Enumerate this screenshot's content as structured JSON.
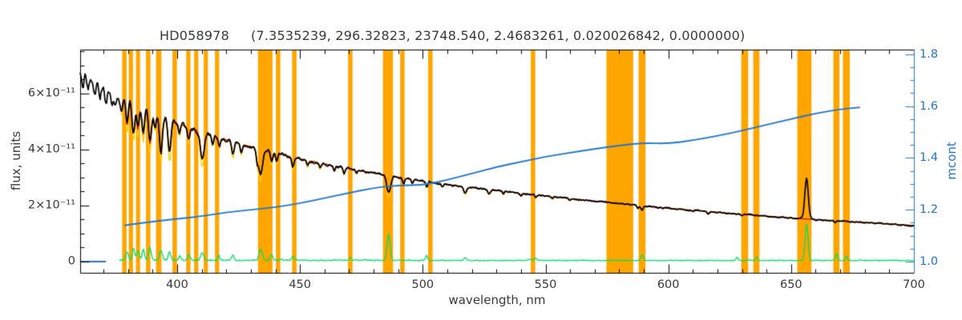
{
  "title": {
    "star_id": "HD058978",
    "params": "(7.3535239, 296.32823, 23748.540, 2.4683261, 0.020026842, 0.0000000)"
  },
  "axes": {
    "x_label": "wavelength, nm",
    "y_left_label": "flux, units",
    "y_right_label": "mcont"
  },
  "colors": {
    "mask_band": "#FFA500",
    "data_spectrum": "#000000",
    "fit": "#BB1100",
    "fit_alt": "#FFCC00",
    "residual": "#00DF60",
    "mcont": "#2277CC",
    "axis": "#000000",
    "text": "#3A3A3A",
    "background": "#FFFFFF"
  },
  "chart_data": {
    "type": "line",
    "title": "HD058978  (7.3535239, 296.32823, 23748.540, 2.4683261, 0.020026842, 0.0000000)",
    "xlabel": "wavelength, nm",
    "ylabel_left": "flux, units",
    "ylabel_right": "mcont",
    "x_range": [
      360.5,
      700
    ],
    "flux_unit_scale": "1e-11",
    "flux_range_1e11": [
      -0.4,
      7.57
    ],
    "mcont_range": [
      0.957,
      1.818
    ],
    "grid": false,
    "x_ticks": [
      400,
      450,
      500,
      550,
      600,
      650,
      700
    ],
    "x_minor_step": 10,
    "flux_ticks": [
      {
        "v": 0,
        "label": "0"
      },
      {
        "v": 2,
        "label": "2×10⁻¹¹"
      },
      {
        "v": 4,
        "label": "4×10⁻¹¹"
      },
      {
        "v": 6,
        "label": "6×10⁻¹¹"
      }
    ],
    "flux_minor_step": 0.5,
    "mcont_ticks": [
      {
        "v": 1.0,
        "label": "1.0"
      },
      {
        "v": 1.2,
        "label": "1.2"
      },
      {
        "v": 1.4,
        "label": "1.4"
      },
      {
        "v": 1.6,
        "label": "1.6"
      },
      {
        "v": 1.8,
        "label": "1.8"
      }
    ],
    "mcont_minor_step": 0.05,
    "masks_nm": [
      [
        377.6,
        379.4
      ],
      [
        380.3,
        382.0
      ],
      [
        383.2,
        384.9
      ],
      [
        387.3,
        389.1
      ],
      [
        391.4,
        393.6
      ],
      [
        398.1,
        399.9
      ],
      [
        403.7,
        405.4
      ],
      [
        406.9,
        408.6
      ],
      [
        410.8,
        412.5
      ],
      [
        415.4,
        417.1
      ],
      [
        432.9,
        438.8
      ],
      [
        440.2,
        442.0
      ],
      [
        446.8,
        448.6
      ],
      [
        469.6,
        471.4
      ],
      [
        483.8,
        487.9
      ],
      [
        490.8,
        492.6
      ],
      [
        502.2,
        504.0
      ],
      [
        544.0,
        545.8
      ],
      [
        574.8,
        585.7
      ],
      [
        587.9,
        590.7
      ],
      [
        629.7,
        632.5
      ],
      [
        634.6,
        637.1
      ],
      [
        652.5,
        658.3
      ],
      [
        667.2,
        669.7
      ],
      [
        671.1,
        673.9
      ]
    ],
    "series": {
      "flux_continuum_1e11": [
        [
          360,
          6.75
        ],
        [
          368,
          6.32
        ],
        [
          376,
          5.93
        ],
        [
          384,
          5.57
        ],
        [
          392,
          5.25
        ],
        [
          400,
          4.95
        ],
        [
          410,
          4.63
        ],
        [
          420,
          4.35
        ],
        [
          430,
          4.1
        ],
        [
          440,
          3.88
        ],
        [
          450,
          3.67
        ],
        [
          465,
          3.4
        ],
        [
          480,
          3.16
        ],
        [
          495,
          2.94
        ],
        [
          510,
          2.75
        ],
        [
          525,
          2.59
        ],
        [
          540,
          2.44
        ],
        [
          555,
          2.3
        ],
        [
          570,
          2.16
        ],
        [
          585,
          2.03
        ],
        [
          600,
          1.9
        ],
        [
          615,
          1.8
        ],
        [
          630,
          1.69
        ],
        [
          645,
          1.59
        ],
        [
          660,
          1.5
        ],
        [
          675,
          1.42
        ],
        [
          690,
          1.34
        ],
        [
          700,
          1.29
        ]
      ],
      "absorption_lines_c_d_w": [
        [
          361.6,
          0.35,
          0.4
        ],
        [
          363.6,
          0.4,
          0.45
        ],
        [
          366.4,
          0.45,
          0.45
        ],
        [
          368.6,
          0.4,
          0.4
        ],
        [
          371.0,
          0.45,
          0.45
        ],
        [
          373.6,
          0.55,
          0.5
        ],
        [
          375.0,
          0.4,
          0.4
        ],
        [
          377.2,
          0.5,
          0.45
        ],
        [
          379.6,
          0.9,
          0.5
        ],
        [
          382.2,
          1.05,
          0.55
        ],
        [
          384.0,
          0.85,
          0.5
        ],
        [
          386.2,
          0.95,
          0.5
        ],
        [
          388.9,
          1.15,
          0.6
        ],
        [
          391.0,
          0.5,
          0.4
        ],
        [
          393.4,
          1.25,
          0.6
        ],
        [
          396.9,
          1.15,
          0.6
        ],
        [
          400.9,
          0.35,
          0.4
        ],
        [
          404.6,
          0.45,
          0.45
        ],
        [
          410.2,
          0.95,
          0.8
        ],
        [
          414.4,
          0.3,
          0.4
        ],
        [
          417.2,
          0.3,
          0.4
        ],
        [
          422.7,
          0.45,
          0.5
        ],
        [
          426.1,
          0.3,
          0.4
        ],
        [
          432.6,
          0.35,
          0.4
        ],
        [
          434.0,
          0.9,
          0.8
        ],
        [
          438.4,
          0.35,
          0.45
        ],
        [
          440.5,
          0.3,
          0.4
        ],
        [
          447.1,
          0.35,
          0.5
        ],
        [
          453.1,
          0.2,
          0.4
        ],
        [
          458.2,
          0.18,
          0.4
        ],
        [
          464.0,
          0.15,
          0.4
        ],
        [
          468.0,
          0.2,
          0.4
        ],
        [
          473.0,
          0.12,
          0.4
        ],
        [
          486.1,
          0.6,
          0.8
        ],
        [
          492.2,
          0.18,
          0.4
        ],
        [
          495.7,
          0.12,
          0.35
        ],
        [
          501.6,
          0.18,
          0.4
        ],
        [
          508.0,
          0.1,
          0.4
        ],
        [
          517.3,
          0.22,
          0.6
        ],
        [
          527.0,
          0.15,
          0.5
        ],
        [
          532.8,
          0.1,
          0.4
        ],
        [
          540.0,
          0.07,
          0.4
        ],
        [
          546.0,
          0.1,
          0.4
        ],
        [
          552.8,
          0.08,
          0.4
        ],
        [
          560.0,
          0.06,
          0.4
        ],
        [
          587.6,
          0.1,
          0.4
        ],
        [
          589.3,
          0.15,
          0.5
        ],
        [
          610.0,
          0.05,
          0.4
        ],
        [
          616.2,
          0.07,
          0.4
        ],
        [
          630.0,
          0.06,
          0.4
        ],
        [
          667.8,
          0.07,
          0.4
        ]
      ],
      "emission_line_c_h_w": [
        656.3,
        1.45,
        0.7
      ],
      "fit_start_nm": 377.0,
      "fit_line_depth_scale_red": 1.0,
      "fit_line_depth_scale_yellow": 1.3,
      "mcont": [
        [
          378.5,
          1.14
        ],
        [
          390,
          1.155
        ],
        [
          400,
          1.165
        ],
        [
          410,
          1.175
        ],
        [
          420,
          1.19
        ],
        [
          430,
          1.2
        ],
        [
          440,
          1.21
        ],
        [
          450,
          1.225
        ],
        [
          460,
          1.245
        ],
        [
          470,
          1.265
        ],
        [
          480,
          1.285
        ],
        [
          490,
          1.295
        ],
        [
          500,
          1.295
        ],
        [
          510,
          1.315
        ],
        [
          520,
          1.34
        ],
        [
          530,
          1.365
        ],
        [
          540,
          1.385
        ],
        [
          550,
          1.405
        ],
        [
          560,
          1.42
        ],
        [
          570,
          1.435
        ],
        [
          580,
          1.448
        ],
        [
          590,
          1.458
        ],
        [
          600,
          1.455
        ],
        [
          610,
          1.468
        ],
        [
          620,
          1.485
        ],
        [
          630,
          1.505
        ],
        [
          640,
          1.528
        ],
        [
          650,
          1.55
        ],
        [
          660,
          1.572
        ],
        [
          670,
          1.588
        ],
        [
          678,
          1.595
        ]
      ],
      "mcont_left_segment": {
        "x": [
          360.5,
          371.0
        ],
        "v": 1.0
      },
      "residual_start_nm": 376.5,
      "residual_baseline_1e11": 0.03,
      "residual_spikes_c_h_w": [
        [
          379.6,
          0.3,
          0.5
        ],
        [
          382.2,
          0.42,
          0.5
        ],
        [
          384.0,
          0.3,
          0.5
        ],
        [
          386.2,
          0.38,
          0.5
        ],
        [
          388.9,
          0.45,
          0.55
        ],
        [
          393.4,
          0.35,
          0.55
        ],
        [
          396.9,
          0.3,
          0.5
        ],
        [
          401.0,
          0.15,
          0.4
        ],
        [
          404.6,
          0.2,
          0.45
        ],
        [
          410.2,
          0.28,
          0.6
        ],
        [
          417.0,
          0.15,
          0.4
        ],
        [
          422.7,
          0.2,
          0.45
        ],
        [
          434.0,
          0.4,
          0.6
        ],
        [
          438.4,
          0.2,
          0.45
        ],
        [
          447.1,
          0.15,
          0.45
        ],
        [
          470.5,
          0.12,
          0.4
        ],
        [
          486.1,
          0.95,
          0.6
        ],
        [
          501.6,
          0.18,
          0.4
        ],
        [
          517.3,
          0.12,
          0.45
        ],
        [
          546.0,
          0.1,
          0.4
        ],
        [
          589.3,
          0.2,
          0.5
        ],
        [
          628.0,
          0.12,
          0.4
        ],
        [
          636.0,
          0.1,
          0.4
        ],
        [
          656.3,
          1.3,
          0.6
        ],
        [
          668.5,
          0.25,
          0.45
        ],
        [
          672.5,
          0.15,
          0.4
        ]
      ],
      "noise": {
        "seed": 42
      }
    }
  }
}
